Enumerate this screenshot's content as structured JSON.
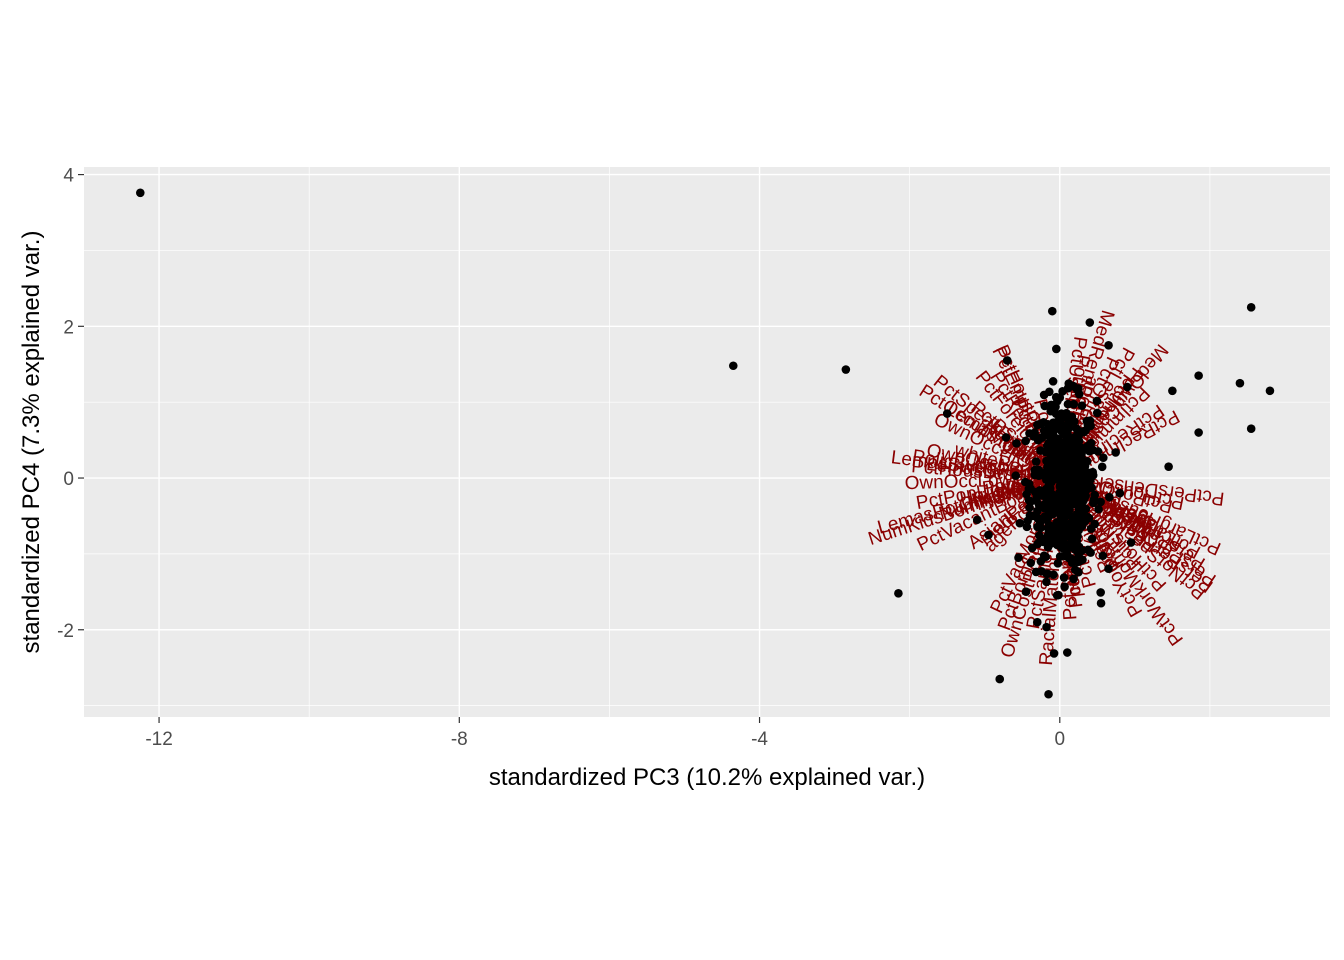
{
  "chart_data": {
    "type": "scatter",
    "title": "",
    "xlabel": "standardized PC3 (10.2% explained var.)",
    "ylabel": "standardized PC4 (7.3% explained var.)",
    "xlim": [
      -13,
      3.6
    ],
    "ylim": [
      -3.15,
      4.1
    ],
    "x_ticks": [
      -12,
      -8,
      -4,
      0
    ],
    "y_ticks": [
      -2,
      0,
      2,
      4
    ],
    "x_tick_labels": [
      "-12",
      "-8",
      "-4",
      "0"
    ],
    "y_tick_labels": [
      "-2",
      "0",
      "2",
      "4"
    ],
    "grid": true,
    "legend": "none",
    "colors": {
      "panel_background": "#ebebeb",
      "grid_line": "#ffffff",
      "points": "#000000",
      "variable_labels": "#8b0000"
    },
    "points": {
      "outliers": [
        {
          "x": -12.25,
          "y": 3.76
        },
        {
          "x": -4.35,
          "y": 1.48
        },
        {
          "x": -2.85,
          "y": 1.43
        },
        {
          "x": -1.5,
          "y": 0.85
        },
        {
          "x": -1.1,
          "y": -0.55
        },
        {
          "x": -2.15,
          "y": -1.52
        },
        {
          "x": -0.8,
          "y": -2.65
        },
        {
          "x": -0.55,
          "y": -1.05
        },
        {
          "x": -0.3,
          "y": -1.9
        },
        {
          "x": -0.7,
          "y": 1.55
        },
        {
          "x": -0.2,
          "y": 0.95
        },
        {
          "x": -0.1,
          "y": 2.2
        },
        {
          "x": 0.4,
          "y": 2.05
        },
        {
          "x": 0.65,
          "y": 1.75
        },
        {
          "x": 0.9,
          "y": 1.2
        },
        {
          "x": 1.5,
          "y": 1.15
        },
        {
          "x": 1.85,
          "y": 1.35
        },
        {
          "x": 1.45,
          "y": 0.15
        },
        {
          "x": 2.55,
          "y": 0.65
        },
        {
          "x": 2.55,
          "y": 2.25
        },
        {
          "x": 2.4,
          "y": 1.25
        },
        {
          "x": 2.8,
          "y": 1.15
        },
        {
          "x": 1.85,
          "y": 0.6
        },
        {
          "x": 0.8,
          "y": -0.2
        },
        {
          "x": -0.15,
          "y": -2.85
        },
        {
          "x": 0.1,
          "y": -2.3
        },
        {
          "x": 0.55,
          "y": -1.65
        },
        {
          "x": 0.95,
          "y": -0.85
        },
        {
          "x": -0.95,
          "y": -0.75
        },
        {
          "x": 0.25,
          "y": 0.55
        }
      ],
      "cluster": {
        "center": [
          0.05,
          -0.1
        ],
        "sd": [
          0.22,
          0.55
        ],
        "n": 600
      }
    },
    "variable_labels": [
      {
        "text": "PctSameHouse85",
        "angle": 79.89
      },
      {
        "text": "RacialMatchCommPol",
        "angle": 85.78
      },
      {
        "text": "OwnCostPctIncNoMtg",
        "angle": 73.47
      },
      {
        "text": "PctVacMore6Mos",
        "angle": 64.41
      },
      {
        "text": "PctBornSameState",
        "angle": 69.62
      },
      {
        "text": "PctSameCity85",
        "angle": 97.37
      },
      {
        "text": "PctSameState85",
        "angle": 94.31
      },
      {
        "text": "pctWRetire",
        "angle": 97.13
      },
      {
        "text": "pctWFarmSelf",
        "angle": 97.37
      },
      {
        "text": "PctWorkMom",
        "angle": 105.58
      },
      {
        "text": "PctKids2Par",
        "angle": 117.09
      },
      {
        "text": "PctFam2Par",
        "angle": 121.86
      },
      {
        "text": "PctYoungKids2Par",
        "angle": 119.63
      },
      {
        "text": "PctTeen2Par",
        "angle": 123.18
      },
      {
        "text": "PctEmplManu",
        "angle": 131.1
      },
      {
        "text": "PctWorkMomYoungKids",
        "angle": 125.82
      },
      {
        "text": "PersPerRentOccHous",
        "angle": 143.85
      },
      {
        "text": "PersPerOccupHous",
        "angle": 148.8
      },
      {
        "text": "PersPerFam",
        "angle": 143.45
      },
      {
        "text": "PersPerOwnOccHous",
        "angle": 146.13
      },
      {
        "text": "PctLargHouseOccup",
        "angle": 155.88
      },
      {
        "text": "PctLargHouseFam",
        "angle": 151.53
      },
      {
        "text": "HispPerCap",
        "angle": 149.84
      },
      {
        "text": "agePct12t21",
        "angle": 147.4
      },
      {
        "text": "agePct12t29",
        "angle": 152.32
      },
      {
        "text": "agePct16t24",
        "angle": 153.07
      },
      {
        "text": "PctRecentImmig",
        "angle": 150.88
      },
      {
        "text": "PctNotSpeakEnglWell",
        "angle": 140.69
      },
      {
        "text": "PctHousNoPhone",
        "angle": 133.15
      },
      {
        "text": "PctPolicMinor",
        "angle": 165.57
      },
      {
        "text": "PctPersDenseHous",
        "angle": 172.76
      },
      {
        "text": "PctHousOccup",
        "angle": 168.48
      },
      {
        "text": "NumKidsBornNeverMar",
        "angle": 17.85
      },
      {
        "text": "LemasPctOfficDrugUn",
        "angle": 15.4
      },
      {
        "text": "PctIlleg",
        "angle": 20.84
      },
      {
        "text": "NumInShelters",
        "angle": 16.72
      },
      {
        "text": "NumStreet",
        "angle": 14.65
      },
      {
        "text": "HousVacant",
        "angle": 12.09
      },
      {
        "text": "PctVacantBoarded",
        "angle": 25.61
      },
      {
        "text": "PopDens",
        "angle": 7.77
      },
      {
        "text": "AsianPerCap",
        "angle": 36.68
      },
      {
        "text": "agePct65up",
        "angle": 44.19
      },
      {
        "text": "medFamInc",
        "angle": 39.3
      },
      {
        "text": "PctPopUnderPov",
        "angle": 9.99
      },
      {
        "text": "OwnOccLowQuart",
        "angle": 1.91
      },
      {
        "text": "PctHousLess3BR",
        "angle": -4.56
      },
      {
        "text": "LemasSwFTPerPop",
        "angle": -7.08
      },
      {
        "text": "LemasSwornFT",
        "angle": -6.03
      },
      {
        "text": "PolicBudgPerPop",
        "angle": -8.46
      },
      {
        "text": "OwnOccMedVal",
        "angle": -11.95
      },
      {
        "text": "whitePerCap",
        "angle": -15.4
      },
      {
        "text": "OwnOccHiQuart",
        "angle": -25.67
      },
      {
        "text": "LemasTotalReq",
        "angle": -32.47
      },
      {
        "text": "NumImmig",
        "angle": -36.52
      },
      {
        "text": "PctSpeakEnglOnly",
        "angle": -38.64
      },
      {
        "text": "PctOccupMgmtProf",
        "angle": -32.63
      },
      {
        "text": "PctBSorMore",
        "angle": -40.43
      },
      {
        "text": "PctEmploy",
        "angle": -61.17
      },
      {
        "text": "PctForeignBorn",
        "angle": -52.58
      },
      {
        "text": "PctRecImmig5",
        "angle": -58.31
      },
      {
        "text": "PctHousOwnOcc",
        "angle": -65.94
      },
      {
        "text": "PctEmplProfServ",
        "angle": -64.44
      },
      {
        "text": "PctSpeak",
        "angle": -75.66
      },
      {
        "text": "MedRentPctHousInc",
        "angle": -106.18
      },
      {
        "text": "PctUsePubTrans",
        "angle": -98.36
      },
      {
        "text": "PctOfficDrugUn",
        "angle": -114.05
      },
      {
        "text": "PctLess9thGrade",
        "angle": -118.34
      },
      {
        "text": "agePct12t24",
        "angle": -108.23
      },
      {
        "text": "MedOwnCostPctInc",
        "angle": -128.47
      },
      {
        "text": "PctUnemployed",
        "angle": -126.1
      },
      {
        "text": "PctRecImmig10",
        "angle": -151.93
      },
      {
        "text": "PctRecImmig8",
        "angle": -145.86
      },
      {
        "text": "PctImmigRec5",
        "angle": -134.49
      },
      {
        "text": "PctImmigRec8",
        "angle": -124.59
      },
      {
        "text": "PctNotHSGrad",
        "angle": -100.96
      }
    ]
  }
}
